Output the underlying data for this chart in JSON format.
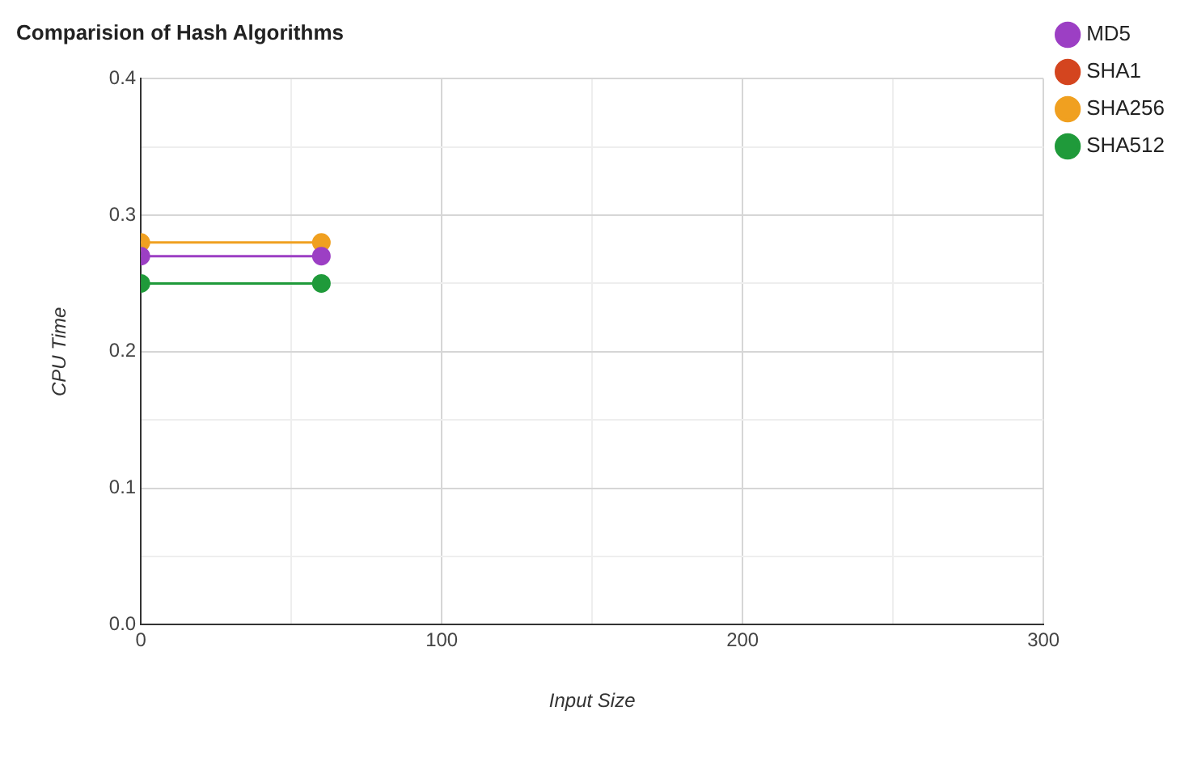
{
  "chart_data": {
    "type": "line",
    "title": "Comparision of Hash Algorithms",
    "xlabel": "Input Size",
    "ylabel": "CPU Time",
    "x": [
      0,
      60
    ],
    "series": [
      {
        "name": "MD5",
        "color": "#9c3fc4",
        "values": [
          0.27,
          0.27
        ]
      },
      {
        "name": "SHA1",
        "color": "#d4451f",
        "values": [
          null,
          null
        ]
      },
      {
        "name": "SHA256",
        "color": "#f0a020",
        "values": [
          0.28,
          0.28
        ]
      },
      {
        "name": "SHA512",
        "color": "#1f9a3a",
        "values": [
          0.25,
          0.25
        ]
      }
    ],
    "xlim": [
      0,
      300
    ],
    "xticks": [
      0,
      {
        "value": 50,
        "label": null
      },
      100,
      {
        "value": 150,
        "label": null
      },
      200,
      {
        "value": 250,
        "label": null
      },
      300
    ],
    "ylim": [
      0,
      0.4
    ],
    "yticks": [
      {
        "value": 0,
        "label": "0.0"
      },
      {
        "value": 0.05,
        "label": null
      },
      0.1,
      {
        "value": 0.15,
        "label": null
      },
      0.2,
      {
        "value": 0.25,
        "label": null
      },
      0.3,
      {
        "value": 0.35,
        "label": null
      },
      0.4
    ],
    "grid": true,
    "legend": "right",
    "marker": "circle",
    "line_style": "solid"
  }
}
